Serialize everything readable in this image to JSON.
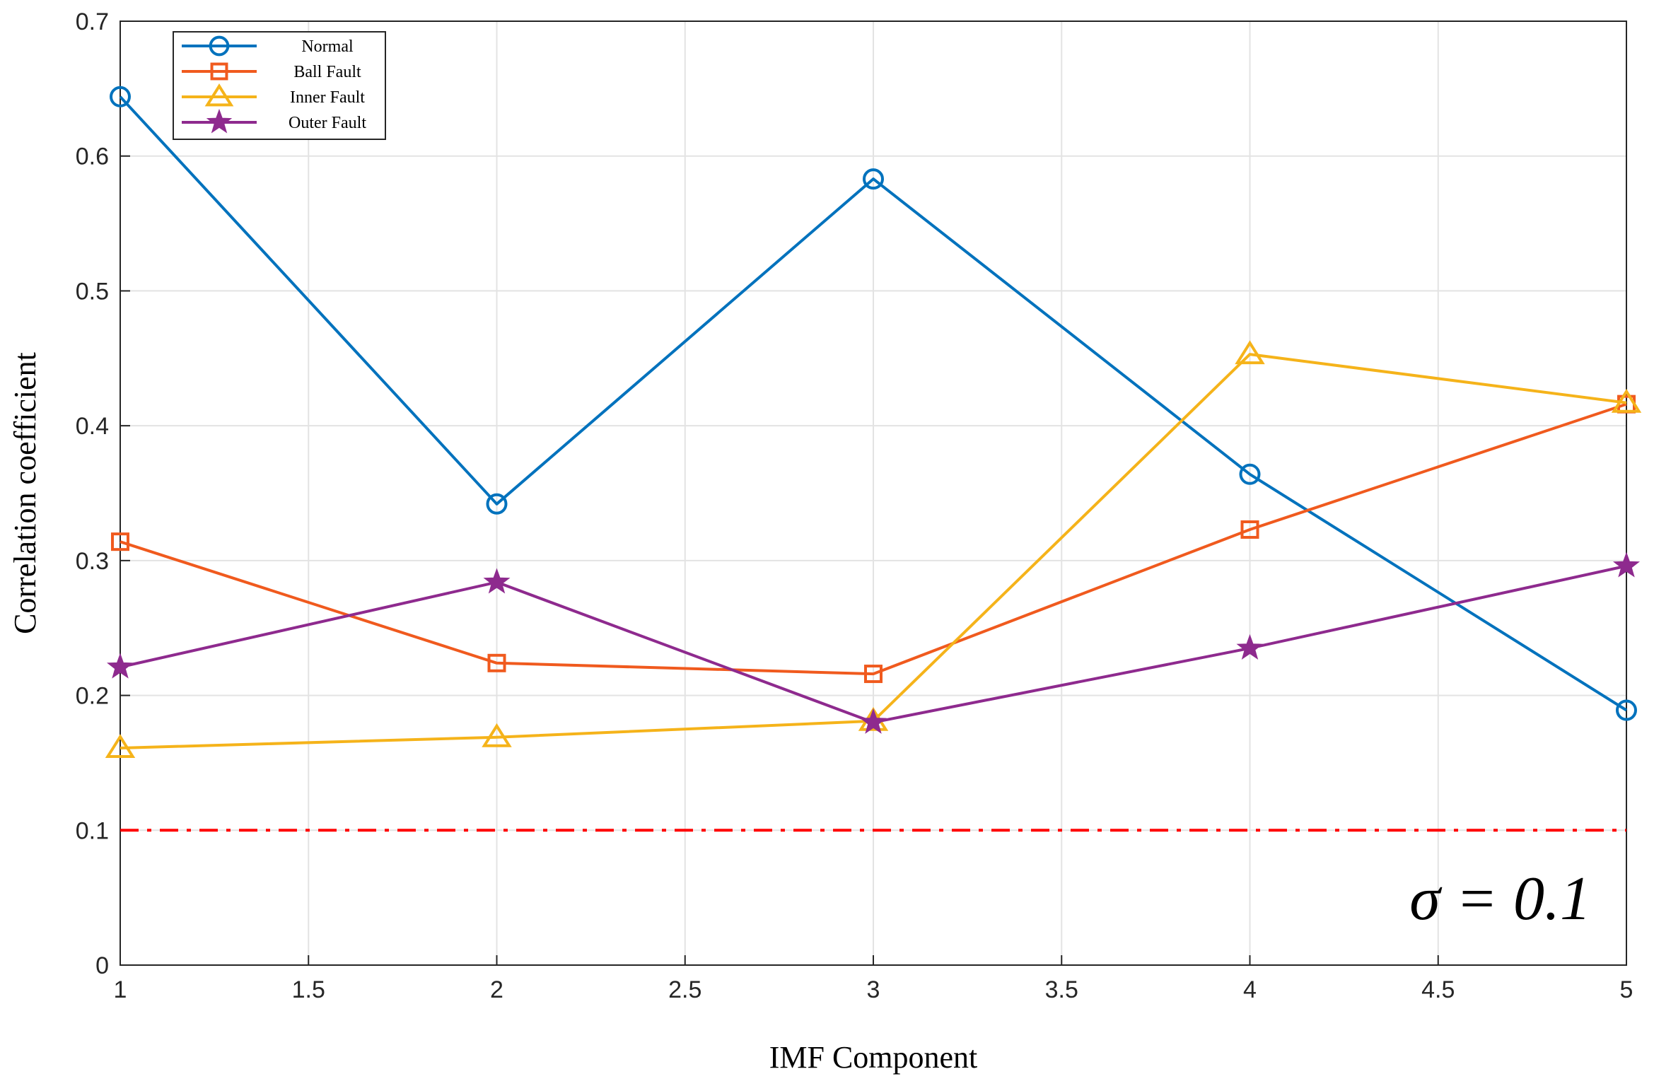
{
  "chart_data": {
    "type": "line",
    "title": "",
    "xlabel": "IMF Component",
    "ylabel": "Correlation coefficient",
    "xlim": [
      1,
      5
    ],
    "ylim": [
      0,
      0.7
    ],
    "xticks": [
      1,
      1.5,
      2,
      2.5,
      3,
      3.5,
      4,
      4.5,
      5
    ],
    "xtick_labels": [
      "1",
      "1.5",
      "2",
      "2.5",
      "3",
      "3.5",
      "4",
      "4.5",
      "5"
    ],
    "yticks": [
      0,
      0.1,
      0.2,
      0.3,
      0.4,
      0.5,
      0.6,
      0.7
    ],
    "ytick_labels": [
      "0",
      "0.1",
      "0.2",
      "0.3",
      "0.4",
      "0.5",
      "0.6",
      "0.7"
    ],
    "grid": true,
    "legend_position": "top-left",
    "x": [
      1,
      2,
      3,
      4,
      5
    ],
    "series": [
      {
        "name": "Normal",
        "color": "#0072BD",
        "marker": "circle",
        "values": [
          0.644,
          0.342,
          0.583,
          0.364,
          0.189
        ]
      },
      {
        "name": "Ball Fault",
        "color": "#F05A1E",
        "marker": "square",
        "values": [
          0.314,
          0.224,
          0.216,
          0.323,
          0.416
        ]
      },
      {
        "name": "Inner Fault",
        "color": "#F5B31A",
        "marker": "triangle",
        "values": [
          0.161,
          0.169,
          0.181,
          0.453,
          0.417
        ]
      },
      {
        "name": "Outer Fault",
        "color": "#8E2A8E",
        "marker": "star",
        "values": [
          0.221,
          0.284,
          0.18,
          0.235,
          0.296
        ]
      }
    ],
    "threshold": {
      "value": 0.1,
      "color": "#FF0000",
      "style": "dash-dot"
    },
    "annotation": "σ = 0.1"
  }
}
